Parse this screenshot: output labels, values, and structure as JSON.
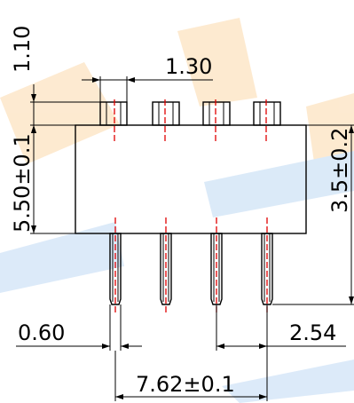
{
  "drawing": {
    "dimensions": {
      "top_lead_height": "1.10",
      "top_pin_width": "1.30",
      "body_height": "5.50±0.1",
      "overall_height": "3.5±0.2",
      "lead_width": "0.60",
      "pin_pitch": "2.54",
      "row_spacing": "7.62±0.1"
    },
    "pin_count": 4,
    "colors": {
      "outline": "#000000",
      "centerline": "#e00000",
      "watermark_orange": "#fde8cc",
      "watermark_blue": "#d8e8f8"
    }
  }
}
